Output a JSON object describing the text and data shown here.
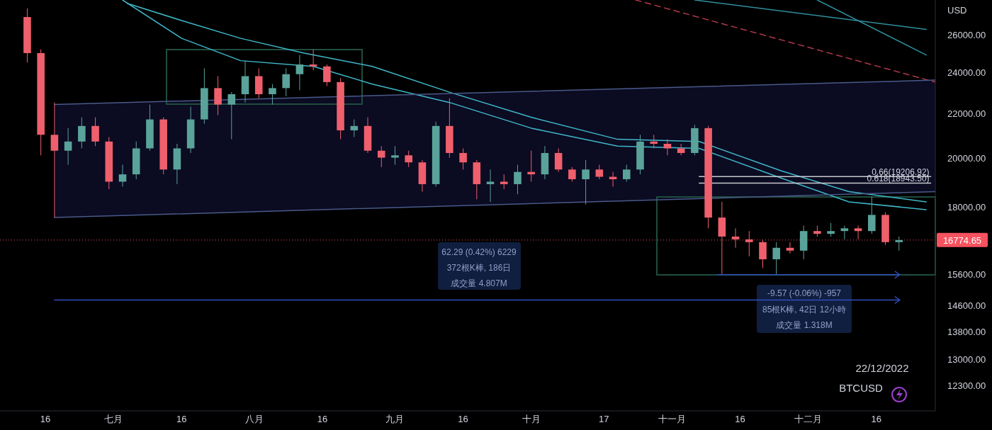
{
  "chart_data": {
    "type": "candlestick",
    "ylabel": "USD",
    "log": "y",
    "xlim": [
      "2022-06-06",
      "2022-12-29"
    ],
    "xticks": [
      {
        "value": "2022-06-16",
        "label": "16"
      },
      {
        "value": "2022-07-01",
        "label": "七月"
      },
      {
        "value": "2022-07-16",
        "label": "16"
      },
      {
        "value": "2022-08-01",
        "label": "八月"
      },
      {
        "value": "2022-08-16",
        "label": "16"
      },
      {
        "value": "2022-09-01",
        "label": "九月"
      },
      {
        "value": "2022-09-16",
        "label": "16"
      },
      {
        "value": "2022-10-01",
        "label": "十月"
      },
      {
        "value": "2022-10-17",
        "label": "17"
      },
      {
        "value": "2022-11-01",
        "label": "十一月"
      },
      {
        "value": "2022-11-16",
        "label": "16"
      },
      {
        "value": "2022-12-01",
        "label": "十二月"
      },
      {
        "value": "2022-12-16",
        "label": "16"
      }
    ],
    "ylim": [
      11650,
      28000
    ],
    "yticks": [
      {
        "value": 12300,
        "label": "12300.00"
      },
      {
        "value": 13000,
        "label": "13000.00"
      },
      {
        "value": 13800,
        "label": "13800.00"
      },
      {
        "value": 14600,
        "label": "14600.00"
      },
      {
        "value": 15600,
        "label": "15600.00"
      },
      {
        "value": 18000,
        "label": "18000.00"
      },
      {
        "value": 20000,
        "label": "20000.00"
      },
      {
        "value": 22000,
        "label": "22000.00"
      },
      {
        "value": 24000,
        "label": "24000.00"
      },
      {
        "value": 26000,
        "label": "26000.00"
      }
    ],
    "colors": [
      "#ef5f6c",
      "#ef5f6c",
      "#ef5f6c",
      "#5aa39a",
      "#5aa39a",
      "#ef5f6c",
      "#ef5f6c",
      "#5aa39a",
      "#5aa39a",
      "#5aa39a",
      "#ef5f6c",
      "#5aa39a",
      "#5aa39a",
      "#5aa39a",
      "#ef5f6c",
      "#5aa39a",
      "#5aa39a",
      "#ef5f6c",
      "#5aa39a",
      "#5aa39a",
      "#5aa39a",
      "#ef5f6c",
      "#ef5f6c",
      "#ef5f6c",
      "#5aa39a",
      "#ef5f6c",
      "#ef5f6c",
      "#5aa39a",
      "#ef5f6c",
      "#ef5f6c",
      "#5aa39a",
      "#ef5f6c",
      "#ef5f6c",
      "#ef5f6c",
      "#5aa39a",
      "#ef5f6c",
      "#5aa39a",
      "#ef5f6c",
      "#5aa39a",
      "#ef5f6c",
      "#ef5f6c",
      "#5aa39a",
      "#ef5f6c",
      "#ef5f6c",
      "#5aa39a",
      "#5aa39a",
      "#ef5f6c",
      "#ef5f6c",
      "#ef5f6c",
      "#5aa39a",
      "#ef5f6c",
      "#ef5f6c",
      "#ef5f6c",
      "#ef5f6c",
      "#ef5f6c",
      "#5aa39a",
      "#ef5f6c",
      "#5aa39a",
      "#ef5f6c",
      "#5aa39a",
      "#5aa39a",
      "#ef5f6c",
      "#5aa39a",
      "#ef5f6c",
      "#5aa39a"
    ],
    "x": [
      "2022-06-12",
      "2022-06-15",
      "2022-06-18",
      "2022-06-21",
      "2022-06-24",
      "2022-06-27",
      "2022-06-30",
      "2022-07-03",
      "2022-07-06",
      "2022-07-09",
      "2022-07-12",
      "2022-07-15",
      "2022-07-18",
      "2022-07-21",
      "2022-07-24",
      "2022-07-27",
      "2022-07-30",
      "2022-08-02",
      "2022-08-05",
      "2022-08-08",
      "2022-08-11",
      "2022-08-14",
      "2022-08-17",
      "2022-08-20",
      "2022-08-23",
      "2022-08-26",
      "2022-08-29",
      "2022-09-01",
      "2022-09-04",
      "2022-09-07",
      "2022-09-10",
      "2022-09-13",
      "2022-09-16",
      "2022-09-19",
      "2022-09-22",
      "2022-09-25",
      "2022-09-28",
      "2022-10-01",
      "2022-10-04",
      "2022-10-07",
      "2022-10-10",
      "2022-10-13",
      "2022-10-16",
      "2022-10-19",
      "2022-10-22",
      "2022-10-25",
      "2022-10-28",
      "2022-10-31",
      "2022-11-03",
      "2022-11-06",
      "2022-11-09",
      "2022-11-12",
      "2022-11-15",
      "2022-11-18",
      "2022-11-21",
      "2022-11-24",
      "2022-11-27",
      "2022-11-30",
      "2022-12-03",
      "2022-12-06",
      "2022-12-09",
      "2022-12-12",
      "2022-12-15",
      "2022-12-18",
      "2022-12-21"
    ],
    "ohlc": [
      [
        27000,
        27500,
        24500,
        25000
      ],
      [
        25000,
        25200,
        20100,
        21000
      ],
      [
        21000,
        22500,
        17600,
        20300
      ],
      [
        20300,
        21300,
        19700,
        20700
      ],
      [
        20700,
        21800,
        20400,
        21400
      ],
      [
        21400,
        21800,
        20500,
        20700
      ],
      [
        20700,
        20900,
        18700,
        19000
      ],
      [
        19000,
        19700,
        18800,
        19300
      ],
      [
        19300,
        20700,
        19100,
        20400
      ],
      [
        20400,
        22400,
        20300,
        21700
      ],
      [
        21700,
        21800,
        19300,
        19500
      ],
      [
        19500,
        20600,
        18900,
        20400
      ],
      [
        20400,
        22300,
        20200,
        21700
      ],
      [
        21700,
        24200,
        21500,
        23200
      ],
      [
        23200,
        23800,
        21900,
        22400
      ],
      [
        22400,
        23000,
        20800,
        22900
      ],
      [
        22900,
        24600,
        22500,
        23800
      ],
      [
        23800,
        24200,
        22700,
        22900
      ],
      [
        22900,
        23400,
        22400,
        23200
      ],
      [
        23200,
        24200,
        22800,
        23900
      ],
      [
        23900,
        24900,
        23100,
        24400
      ],
      [
        24400,
        25200,
        24100,
        24300
      ],
      [
        24300,
        24400,
        23300,
        23500
      ],
      [
        23500,
        23700,
        20800,
        21200
      ],
      [
        21200,
        21700,
        20900,
        21400
      ],
      [
        21400,
        21800,
        20200,
        20300
      ],
      [
        20300,
        20500,
        19600,
        20000
      ],
      [
        20000,
        20500,
        19700,
        20100
      ],
      [
        20100,
        20300,
        19600,
        19800
      ],
      [
        19800,
        19900,
        18600,
        18900
      ],
      [
        18900,
        21600,
        18800,
        21400
      ],
      [
        21400,
        22700,
        20000,
        20200
      ],
      [
        20200,
        20400,
        19500,
        19800
      ],
      [
        19800,
        19900,
        18300,
        18900
      ],
      [
        18900,
        19500,
        18200,
        19000
      ],
      [
        19000,
        19300,
        18700,
        18900
      ],
      [
        18900,
        19700,
        18500,
        19400
      ],
      [
        19400,
        20300,
        19000,
        19300
      ],
      [
        19300,
        20500,
        19100,
        20200
      ],
      [
        20200,
        20400,
        19400,
        19500
      ],
      [
        19500,
        19600,
        19000,
        19100
      ],
      [
        19100,
        19900,
        18100,
        19500
      ],
      [
        19500,
        19700,
        19100,
        19200
      ],
      [
        19200,
        19400,
        18800,
        19100
      ],
      [
        19100,
        19700,
        19000,
        19500
      ],
      [
        19500,
        21000,
        19300,
        20700
      ],
      [
        20700,
        21000,
        20400,
        20600
      ],
      [
        20600,
        20800,
        20100,
        20400
      ],
      [
        20400,
        20600,
        20100,
        20200
      ],
      [
        20200,
        21450,
        20100,
        21300
      ],
      [
        21300,
        21400,
        17200,
        17600
      ],
      [
        17600,
        18200,
        15600,
        16900
      ],
      [
        16900,
        17200,
        16500,
        16800
      ],
      [
        16800,
        17100,
        16200,
        16700
      ],
      [
        16700,
        16800,
        15800,
        16100
      ],
      [
        16100,
        16700,
        15600,
        16500
      ],
      [
        16500,
        16700,
        16300,
        16400
      ],
      [
        16400,
        17300,
        16100,
        17100
      ],
      [
        17100,
        17300,
        16900,
        17000
      ],
      [
        17000,
        17400,
        16900,
        17100
      ],
      [
        17100,
        17300,
        16800,
        17200
      ],
      [
        17200,
        17300,
        16800,
        17100
      ],
      [
        17100,
        18400,
        17000,
        17700
      ],
      [
        17700,
        17800,
        16600,
        16700
      ],
      [
        16700,
        16900,
        16400,
        16774.65
      ]
    ],
    "series": [
      {
        "type": "line",
        "color": "#3fb8c8",
        "x": [
          "2022-07-04",
          "2022-07-16",
          "2022-07-29",
          "2022-08-12",
          "2022-08-27",
          "2022-09-13",
          "2022-10-01",
          "2022-10-20",
          "2022-11-07",
          "2022-11-25",
          "2022-12-10",
          "2022-12-27"
        ],
        "values": [
          27800,
          26800,
          25800,
          25000,
          24300,
          23000,
          21800,
          20800,
          20700,
          19450,
          18600,
          18200
        ]
      },
      {
        "type": "line",
        "color": "#3fb8c8",
        "x": [
          "2022-07-03",
          "2022-07-16",
          "2022-07-29",
          "2022-08-14",
          "2022-08-27",
          "2022-09-13",
          "2022-10-01",
          "2022-10-20",
          "2022-11-07",
          "2022-11-25",
          "2022-12-10",
          "2022-12-27"
        ],
        "values": [
          28000,
          25800,
          24600,
          24300,
          23400,
          22500,
          21300,
          20500,
          20400,
          19150,
          18200,
          17900
        ]
      },
      {
        "type": "line",
        "color": "#2f8f9c",
        "x": [
          "2022-11-06",
          "2022-12-27"
        ],
        "values": [
          28000,
          26300
        ]
      },
      {
        "type": "line",
        "color": "#2f8f9c",
        "x": [
          "2022-12-03",
          "2022-12-27"
        ],
        "values": [
          28000,
          24900
        ]
      },
      {
        "type": "line",
        "color": "#b2384a",
        "line_style": "dashed",
        "x": [
          "2022-10-24",
          "2022-12-29"
        ],
        "values": [
          28000,
          23500
        ]
      },
      {
        "type": "line",
        "color": "#4a5a8a",
        "x": [
          "2022-06-18",
          "2022-12-29"
        ],
        "values": [
          22400,
          23600
        ]
      },
      {
        "type": "line",
        "color": "#4a5a8a",
        "x": [
          "2022-06-18",
          "2022-12-29"
        ],
        "values": [
          17600,
          18600
        ]
      },
      {
        "type": "line",
        "color": "#3050c0",
        "x": [
          "2022-06-18",
          "2022-12-21"
        ],
        "values": [
          14760,
          14760
        ]
      },
      {
        "type": "line",
        "color": "#3050c0",
        "x": [
          "2022-11-11",
          "2022-12-21"
        ],
        "values": [
          15580,
          15580
        ]
      },
      {
        "type": "line",
        "color": "#c8c8d0",
        "x": [
          "2022-11-07",
          "2022-12-28"
        ],
        "values": [
          19206.92,
          19206.92
        ]
      },
      {
        "type": "line",
        "color": "#c8c8d0",
        "x": [
          "2022-11-07",
          "2022-12-28"
        ],
        "values": [
          18943.5,
          18943.5
        ]
      }
    ],
    "ref_lines": [
      {
        "axis": "y",
        "value": 16774.65,
        "label": "16774.65",
        "color": "#f7525f",
        "line_style": "dotted"
      }
    ],
    "annotations": [
      "62.29 (0.42%) 6229",
      "372根K棒, 186日",
      "成交量 4.807M",
      "-9.57 (-0.06%) -957",
      "85根K棒, 42日 12小時",
      "成交量 1.318M",
      "22/12/2022",
      "BTCUSD",
      {
        "text": "0.66(19206.92)",
        "x": "2022-12-28",
        "y": 19206.92
      },
      {
        "text": "0.618(18943.50)",
        "x": "2022-12-28",
        "y": 18943.5
      }
    ]
  }
}
